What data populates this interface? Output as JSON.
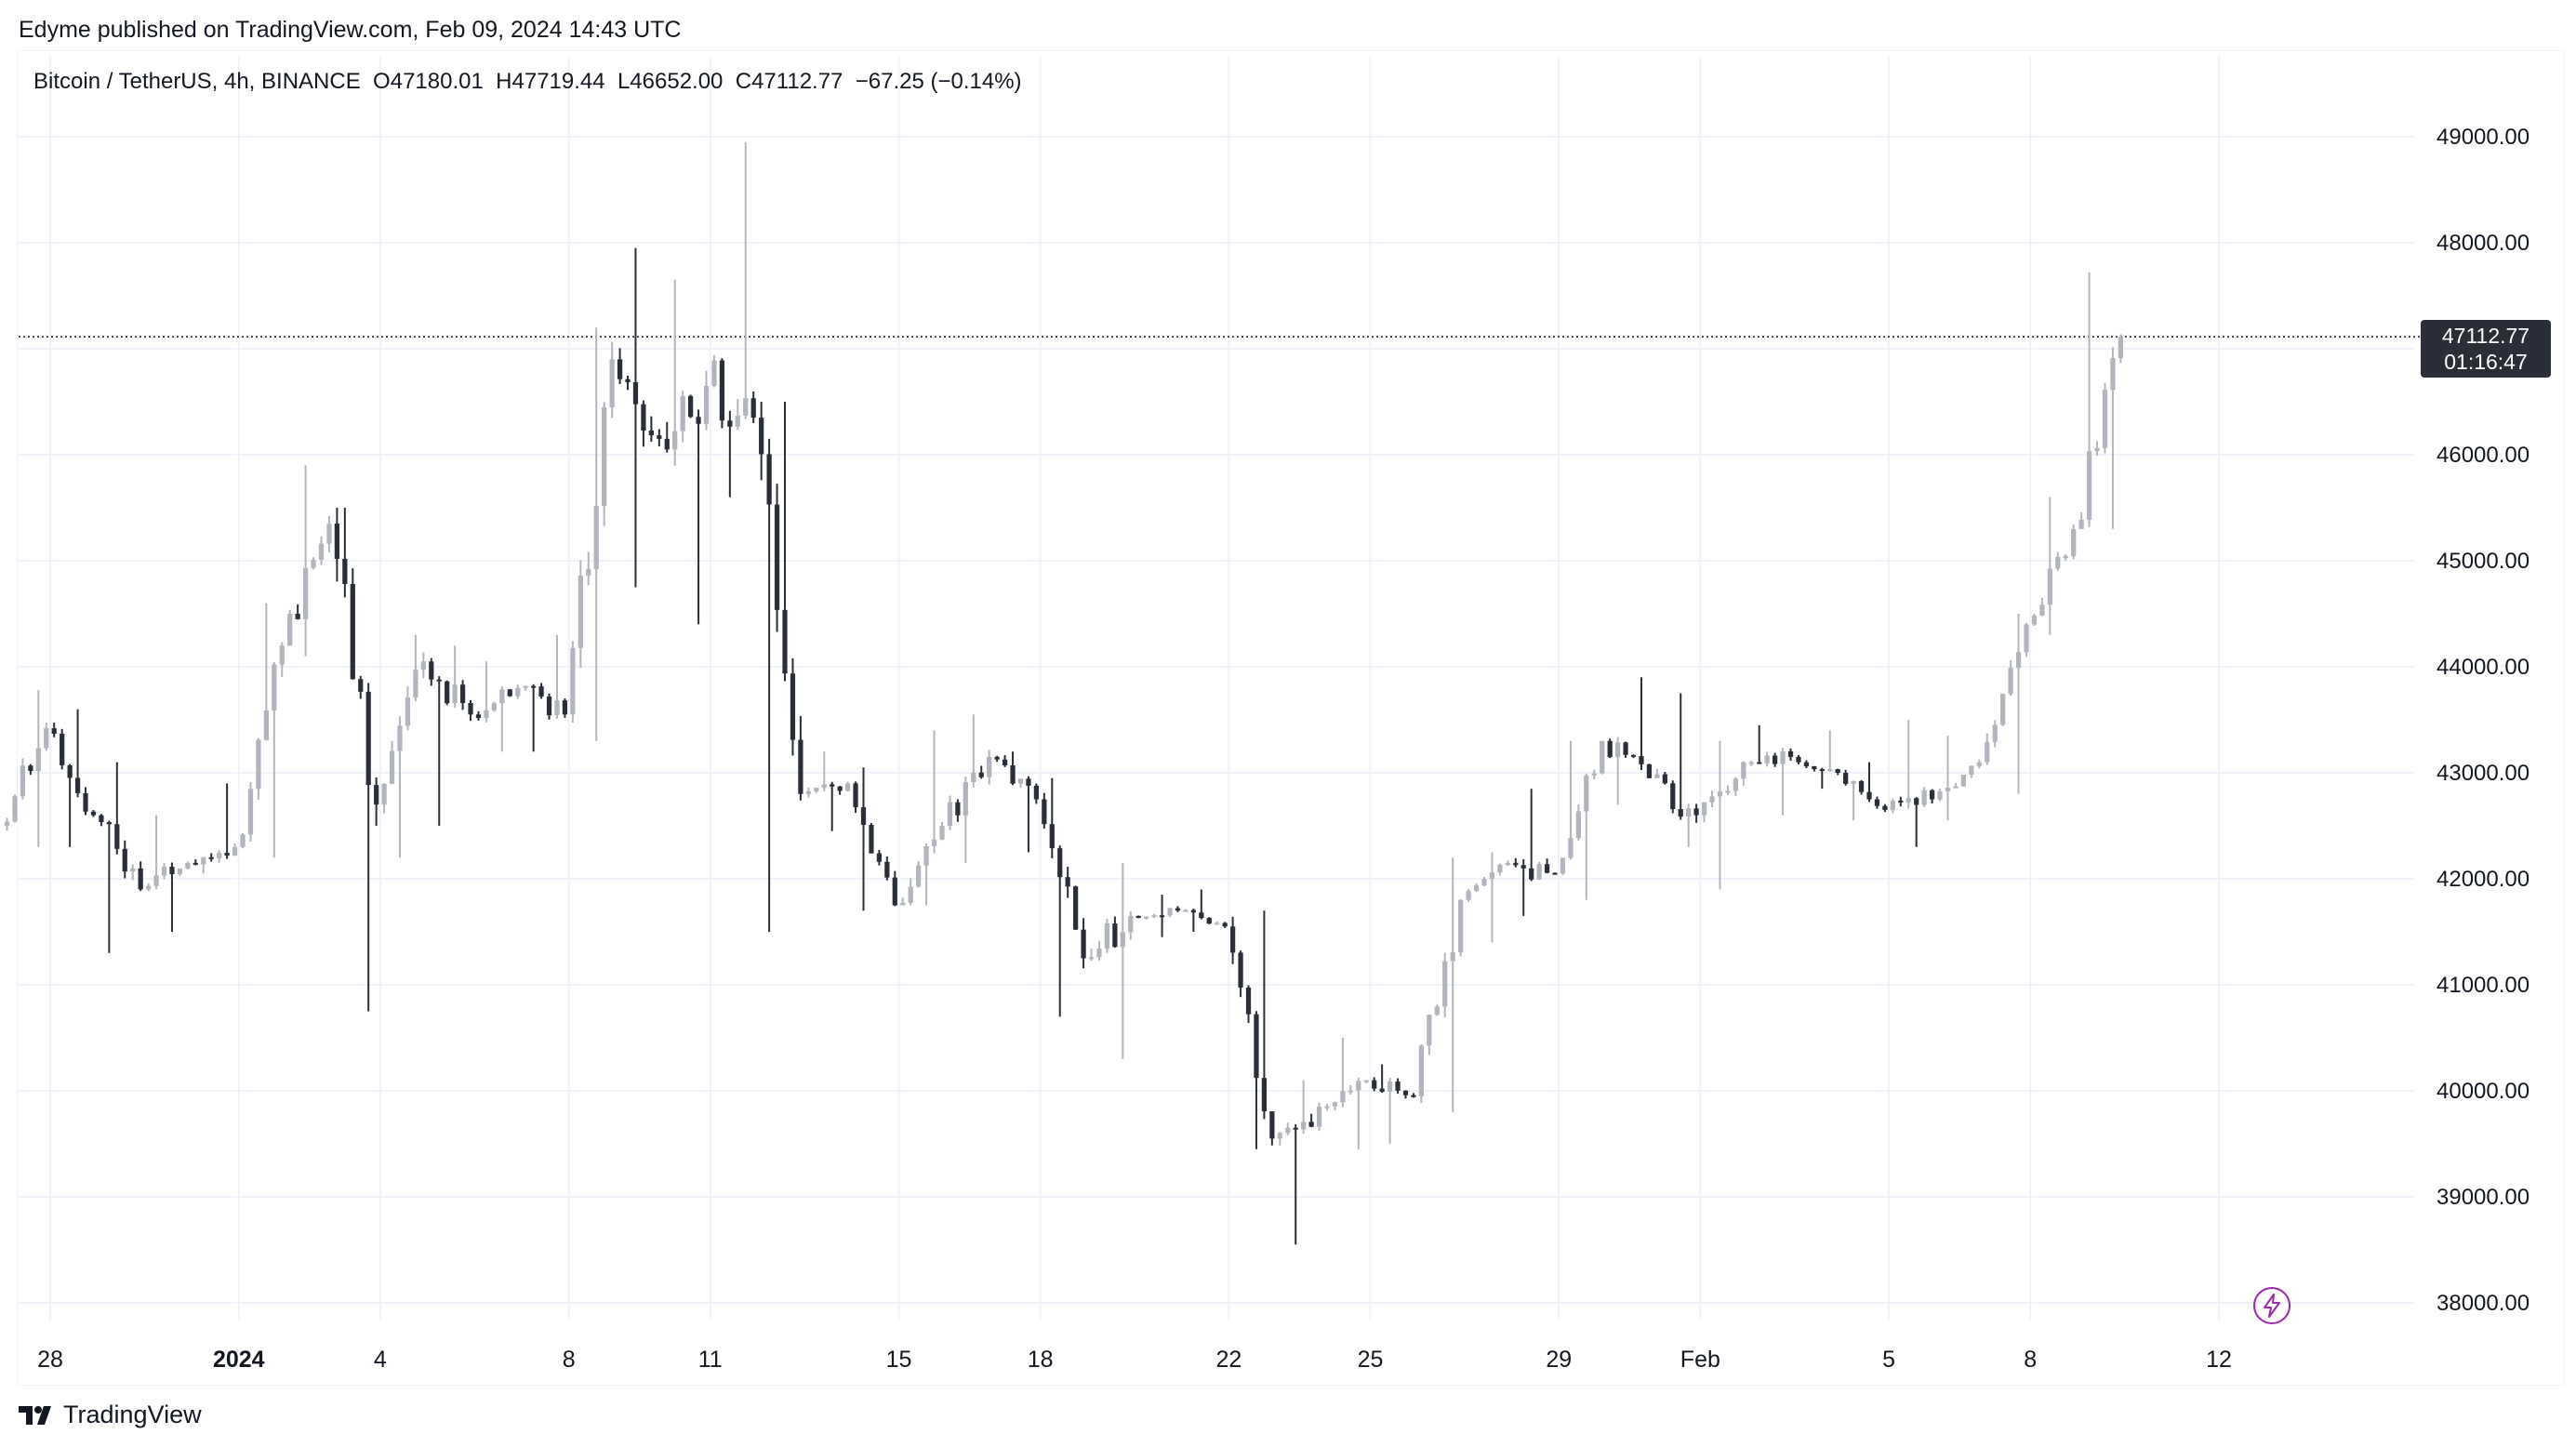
{
  "header": {
    "publish_line": "Edyme published on TradingView.com, Feb 09, 2024 14:43 UTC"
  },
  "legend": {
    "symbol": "Bitcoin / TetherUS, 4h, BINANCE",
    "open": "O47180.01",
    "high": "H47719.44",
    "low": "L46652.00",
    "close": "C47112.77",
    "change": "−67.25 (−0.14%)"
  },
  "price_tag": {
    "price": "47112.77",
    "countdown": "01:16:47"
  },
  "footer": {
    "brand": "TradingView",
    "logo_icon": "tradingview-logo-icon"
  },
  "colors": {
    "up": "#b2b5be",
    "down": "#2a2e39",
    "grid": "#f0f3fa",
    "axis_text": "#131722",
    "accent": "#9c27b0"
  },
  "chart_data": {
    "type": "candlestick",
    "title": "Bitcoin / TetherUS, 4h, BINANCE",
    "xlabel": "",
    "ylabel": "",
    "interval": "4h",
    "ylim": [
      37800,
      49800
    ],
    "yticks": [
      38000,
      39000,
      40000,
      41000,
      42000,
      43000,
      44000,
      45000,
      46000,
      47000,
      48000,
      49000
    ],
    "ytick_labels": [
      "38000.00",
      "39000.00",
      "40000.00",
      "41000.00",
      "42000.00",
      "43000.00",
      "44000.00",
      "45000.00",
      "46000.00",
      "47000.00",
      "48000.00",
      "49000.00"
    ],
    "xticks": [
      {
        "label": "28",
        "x": "2023-12-28",
        "bold": false
      },
      {
        "label": "2024",
        "x": "2024-01-01",
        "bold": true
      },
      {
        "label": "4",
        "x": "2024-01-04",
        "bold": false
      },
      {
        "label": "8",
        "x": "2024-01-08",
        "bold": false
      },
      {
        "label": "11",
        "x": "2024-01-11",
        "bold": false
      },
      {
        "label": "15",
        "x": "2024-01-15",
        "bold": false
      },
      {
        "label": "18",
        "x": "2024-01-18",
        "bold": false
      },
      {
        "label": "22",
        "x": "2024-01-22",
        "bold": false
      },
      {
        "label": "25",
        "x": "2024-01-25",
        "bold": false
      },
      {
        "label": "29",
        "x": "2024-01-29",
        "bold": false
      },
      {
        "label": "Feb",
        "x": "2024-02-01",
        "bold": false
      },
      {
        "label": "5",
        "x": "2024-02-05",
        "bold": false
      },
      {
        "label": "8",
        "x": "2024-02-08",
        "bold": false
      },
      {
        "label": "12",
        "x": "2024-02-12",
        "bold": false
      }
    ],
    "last_price": 47112.77,
    "grid": true,
    "candles_daily_ohlc": [
      {
        "date": "2023-12-27",
        "open": 42500,
        "high": 43780,
        "low": 42300,
        "close": 43420
      },
      {
        "date": "2023-12-28",
        "open": 43420,
        "high": 43600,
        "low": 42300,
        "close": 42600
      },
      {
        "date": "2023-12-29",
        "open": 42600,
        "high": 43100,
        "low": 41300,
        "close": 41900
      },
      {
        "date": "2023-12-30",
        "open": 41900,
        "high": 42600,
        "low": 41500,
        "close": 42150
      },
      {
        "date": "2023-12-31",
        "open": 42150,
        "high": 42900,
        "low": 42050,
        "close": 42300
      },
      {
        "date": "2024-01-01",
        "open": 42300,
        "high": 44600,
        "low": 42200,
        "close": 44200
      },
      {
        "date": "2024-01-02",
        "open": 44200,
        "high": 45900,
        "low": 44100,
        "close": 45350
      },
      {
        "date": "2024-01-03",
        "open": 45350,
        "high": 45500,
        "low": 40750,
        "close": 42700
      },
      {
        "date": "2024-01-04",
        "open": 42700,
        "high": 44300,
        "low": 42200,
        "close": 44050
      },
      {
        "date": "2024-01-05",
        "open": 44050,
        "high": 44200,
        "low": 42500,
        "close": 43550
      },
      {
        "date": "2024-01-06",
        "open": 43550,
        "high": 44050,
        "low": 43200,
        "close": 43800
      },
      {
        "date": "2024-01-07",
        "open": 43800,
        "high": 44300,
        "low": 43200,
        "close": 43550
      },
      {
        "date": "2024-01-08",
        "open": 43550,
        "high": 47200,
        "low": 43300,
        "close": 46900
      },
      {
        "date": "2024-01-09",
        "open": 46900,
        "high": 47950,
        "low": 44750,
        "close": 46150
      },
      {
        "date": "2024-01-10",
        "open": 46150,
        "high": 47650,
        "low": 44400,
        "close": 46650
      },
      {
        "date": "2024-01-11",
        "open": 46650,
        "high": 48950,
        "low": 45600,
        "close": 46350
      },
      {
        "date": "2024-01-12",
        "open": 46350,
        "high": 46500,
        "low": 41500,
        "close": 42800
      },
      {
        "date": "2024-01-13",
        "open": 42800,
        "high": 43200,
        "low": 42450,
        "close": 42900
      },
      {
        "date": "2024-01-14",
        "open": 42900,
        "high": 43050,
        "low": 41700,
        "close": 41750
      },
      {
        "date": "2024-01-15",
        "open": 41750,
        "high": 43400,
        "low": 41750,
        "close": 42500
      },
      {
        "date": "2024-01-16",
        "open": 42500,
        "high": 43550,
        "low": 42150,
        "close": 43150
      },
      {
        "date": "2024-01-17",
        "open": 43150,
        "high": 43200,
        "low": 42250,
        "close": 42750
      },
      {
        "date": "2024-01-18",
        "open": 42750,
        "high": 42950,
        "low": 40700,
        "close": 41250
      },
      {
        "date": "2024-01-19",
        "open": 41250,
        "high": 42150,
        "low": 40300,
        "close": 41650
      },
      {
        "date": "2024-01-20",
        "open": 41650,
        "high": 41850,
        "low": 41450,
        "close": 41700
      },
      {
        "date": "2024-01-21",
        "open": 41700,
        "high": 41900,
        "low": 41500,
        "close": 41550
      },
      {
        "date": "2024-01-22",
        "open": 41550,
        "high": 41700,
        "low": 39450,
        "close": 39550
      },
      {
        "date": "2024-01-23",
        "open": 39550,
        "high": 40100,
        "low": 38550,
        "close": 39850
      },
      {
        "date": "2024-01-24",
        "open": 39850,
        "high": 40500,
        "low": 39450,
        "close": 40100
      },
      {
        "date": "2024-01-25",
        "open": 40100,
        "high": 40250,
        "low": 39500,
        "close": 39950
      },
      {
        "date": "2024-01-26",
        "open": 39950,
        "high": 42200,
        "low": 39800,
        "close": 41800
      },
      {
        "date": "2024-01-27",
        "open": 41800,
        "high": 42250,
        "low": 41400,
        "close": 42150
      },
      {
        "date": "2024-01-28",
        "open": 42150,
        "high": 42850,
        "low": 41650,
        "close": 42050
      },
      {
        "date": "2024-01-29",
        "open": 42050,
        "high": 43300,
        "low": 41800,
        "close": 43300
      },
      {
        "date": "2024-01-30",
        "open": 43300,
        "high": 43900,
        "low": 42700,
        "close": 42950
      },
      {
        "date": "2024-01-31",
        "open": 42950,
        "high": 43750,
        "low": 42300,
        "close": 42600
      },
      {
        "date": "2024-02-01",
        "open": 42600,
        "high": 43300,
        "low": 41900,
        "close": 43100
      },
      {
        "date": "2024-02-02",
        "open": 43100,
        "high": 43450,
        "low": 42600,
        "close": 43150
      },
      {
        "date": "2024-02-03",
        "open": 43150,
        "high": 43400,
        "low": 42850,
        "close": 43000
      },
      {
        "date": "2024-02-04",
        "open": 43000,
        "high": 43100,
        "low": 42550,
        "close": 42650
      },
      {
        "date": "2024-02-05",
        "open": 42650,
        "high": 43500,
        "low": 42300,
        "close": 42750
      },
      {
        "date": "2024-02-06",
        "open": 42750,
        "high": 43350,
        "low": 42550,
        "close": 43100
      },
      {
        "date": "2024-02-07",
        "open": 43100,
        "high": 44500,
        "low": 42800,
        "close": 44400
      },
      {
        "date": "2024-02-08",
        "open": 44400,
        "high": 45600,
        "low": 44300,
        "close": 45300
      },
      {
        "date": "2024-02-09",
        "open": 45300,
        "high": 47719.44,
        "low": 45300,
        "close": 47112.77
      }
    ]
  }
}
